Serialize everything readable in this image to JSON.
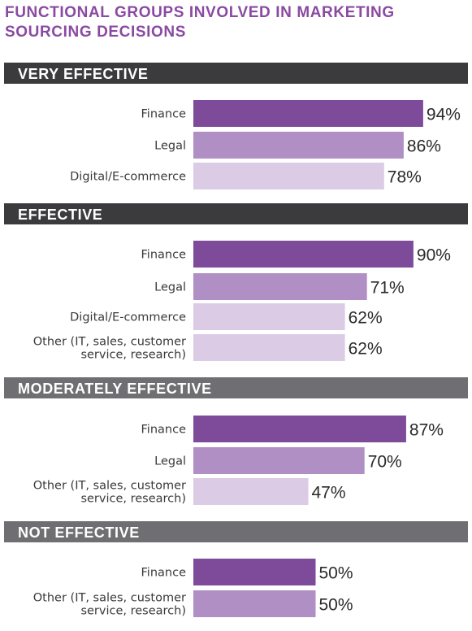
{
  "chart_data": {
    "type": "bar",
    "orientation": "horizontal",
    "title": "FUNCTIONAL GROUPS INVOLVED IN MARKETING SOURCING DECISIONS",
    "title_lines": [
      "FUNCTIONAL GROUPS INVOLVED IN MARKETING",
      "SOURCING DECISIONS"
    ],
    "value_suffix": "%",
    "xlim": [
      0,
      100
    ],
    "colors": {
      "title": "#8a4aa2",
      "section_dark": "#3b3b3e",
      "section_light": "#6e6e73",
      "bar_finance": "#7d4b9a",
      "bar_legal": "#b08fc4",
      "bar_light": "#dccbe4"
    },
    "sections": [
      {
        "name": "VERY EFFECTIVE",
        "band": "dark",
        "bars": [
          {
            "label": [
              "Finance"
            ],
            "value": 94,
            "shade": "bar_finance"
          },
          {
            "label": [
              "Legal"
            ],
            "value": 86,
            "shade": "bar_legal"
          },
          {
            "label": [
              "Digital/E-commerce"
            ],
            "value": 78,
            "shade": "bar_light"
          }
        ]
      },
      {
        "name": "EFFECTIVE",
        "band": "dark",
        "bars": [
          {
            "label": [
              "Finance"
            ],
            "value": 90,
            "shade": "bar_finance"
          },
          {
            "label": [
              "Legal"
            ],
            "value": 71,
            "shade": "bar_legal"
          },
          {
            "label": [
              "Digital/E-commerce"
            ],
            "value": 62,
            "shade": "bar_light"
          },
          {
            "label": [
              "Other (IT, sales, customer",
              "service, research)"
            ],
            "value": 62,
            "shade": "bar_light"
          }
        ]
      },
      {
        "name": "MODERATELY EFFECTIVE",
        "band": "light",
        "bars": [
          {
            "label": [
              "Finance"
            ],
            "value": 87,
            "shade": "bar_finance"
          },
          {
            "label": [
              "Legal"
            ],
            "value": 70,
            "shade": "bar_legal"
          },
          {
            "label": [
              "Other (IT, sales, customer",
              "service, research)"
            ],
            "value": 47,
            "shade": "bar_light"
          }
        ]
      },
      {
        "name": "NOT EFFECTIVE",
        "band": "light",
        "bars": [
          {
            "label": [
              "Finance"
            ],
            "value": 50,
            "shade": "bar_finance"
          },
          {
            "label": [
              "Other (IT, sales, customer",
              "service, research)"
            ],
            "value": 50,
            "shade": "bar_legal"
          }
        ]
      }
    ]
  }
}
